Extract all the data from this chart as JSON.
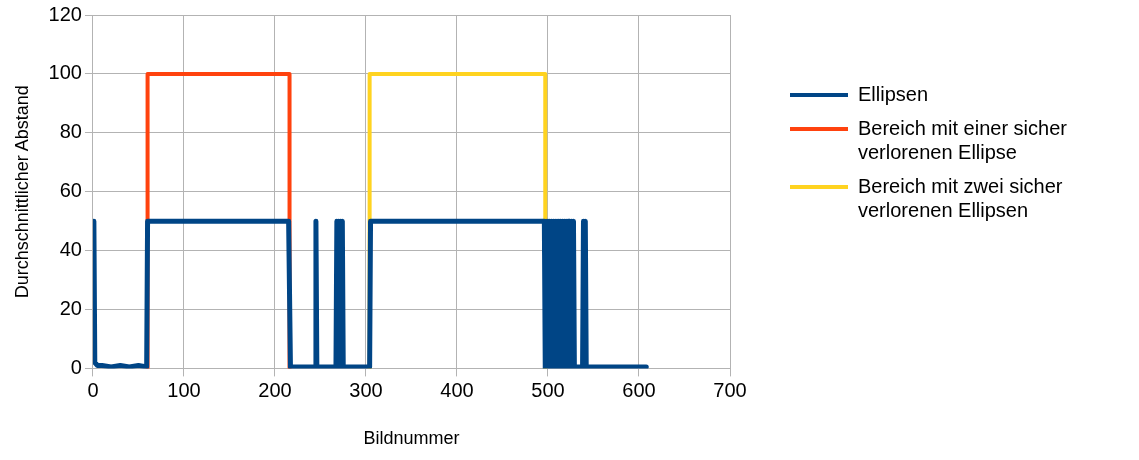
{
  "chart_data": {
    "type": "line",
    "xlabel": "Bildnummer",
    "ylabel": "Durchschnittlicher Abstand",
    "xlim": [
      0,
      700
    ],
    "xticks": [
      0,
      100,
      200,
      300,
      400,
      500,
      600,
      700
    ],
    "ylim": [
      0,
      120
    ],
    "yticks": [
      0,
      20,
      40,
      60,
      80,
      100,
      120
    ],
    "grid": true,
    "legend": "right",
    "marker": "none",
    "line_style": "solid",
    "series": [
      {
        "name": "Ellipsen",
        "color": "#004586",
        "x": [
          1,
          2,
          5,
          10,
          20,
          30,
          40,
          50,
          59,
          60,
          100,
          150,
          215,
          217,
          230,
          244,
          245,
          246,
          260,
          267,
          268,
          269,
          270,
          271,
          272,
          273,
          274,
          275,
          290,
          304,
          305,
          400,
          496,
          497,
          498,
          499,
          500,
          501,
          502,
          503,
          504,
          505,
          506,
          507,
          508,
          509,
          510,
          511,
          512,
          513,
          514,
          515,
          516,
          517,
          518,
          519,
          520,
          521,
          522,
          523,
          524,
          525,
          526,
          527,
          528,
          529,
          530,
          538,
          539,
          540,
          541,
          542,
          560,
          580,
          600,
          608
        ],
        "values": [
          50,
          2,
          1,
          1,
          0.5,
          1,
          0.5,
          1,
          0.5,
          50,
          50,
          50,
          50,
          0.5,
          0.5,
          0.5,
          50,
          0.5,
          0.5,
          0.5,
          50,
          0.5,
          50,
          0.5,
          50,
          0.5,
          50,
          0.5,
          0.5,
          0.5,
          50,
          50,
          50,
          0,
          50,
          0,
          50,
          0,
          50,
          0,
          50,
          0,
          50,
          0,
          50,
          0,
          50,
          0,
          50,
          0,
          50,
          0,
          50,
          0,
          50,
          0,
          50,
          0,
          50,
          0,
          50,
          0,
          50,
          0,
          50,
          0,
          0.5,
          0.5,
          50,
          0.5,
          50,
          0.5,
          0.5,
          0.5,
          0.5,
          0.5
        ]
      },
      {
        "name": "Bereich mit einer sicher verlorenen Ellipse",
        "color": "#ff420e",
        "x": [
          60,
          60,
          216,
          216
        ],
        "values": [
          0,
          100,
          100,
          0
        ]
      },
      {
        "name": "Bereich mit zwei sicher verlorenen Ellipsen",
        "color": "#ffd320",
        "x": [
          304,
          304,
          497,
          497
        ],
        "values": [
          0,
          100,
          100,
          0
        ]
      }
    ]
  }
}
